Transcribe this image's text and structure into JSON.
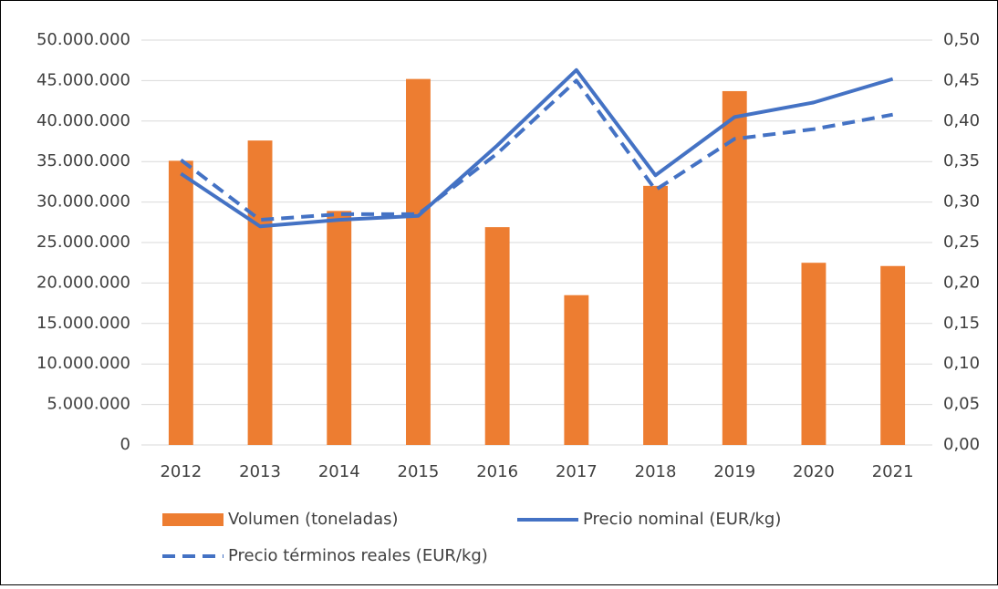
{
  "chart_data": {
    "type": "bar-line",
    "categories": [
      "2012",
      "2013",
      "2014",
      "2015",
      "2016",
      "2017",
      "2018",
      "2019",
      "2020",
      "2021"
    ],
    "series": [
      {
        "name": "Volumen (toneladas)",
        "type": "bar",
        "color": "#ed7d31",
        "values": [
          35100000,
          37600000,
          28900000,
          45200000,
          26900000,
          18500000,
          32000000,
          43700000,
          22500000,
          22100000
        ]
      },
      {
        "name": "Precio nominal (EUR/kg)",
        "type": "line",
        "axis": "y2",
        "color": "#4472c4",
        "values": [
          0.335,
          0.27,
          0.278,
          0.283,
          0.37,
          0.463,
          0.333,
          0.405,
          0.423,
          0.452
        ]
      },
      {
        "name": "Precio términos reales (EUR/kg)",
        "type": "line",
        "dashed": true,
        "axis": "y2",
        "color": "#4472c4",
        "values": [
          0.352,
          0.278,
          0.285,
          0.285,
          0.36,
          0.45,
          0.315,
          0.378,
          0.39,
          0.408
        ]
      }
    ],
    "ylim": [
      0,
      50000000
    ],
    "yticks": [
      0,
      {
        "value": 5000000,
        "label": "5.000.000"
      },
      {
        "value": 10000000,
        "label": "10.000.000"
      },
      {
        "value": 15000000,
        "label": "15.000.000"
      },
      {
        "value": 20000000,
        "label": "20.000.000"
      },
      {
        "value": 25000000,
        "label": "25.000.000"
      },
      {
        "value": 30000000,
        "label": "30.000.000"
      },
      {
        "value": 35000000,
        "label": "35.000.000"
      },
      {
        "value": 40000000,
        "label": "40.000.000"
      },
      {
        "value": 45000000,
        "label": "45.000.000"
      },
      {
        "value": 50000000,
        "label": "50.000.000"
      }
    ],
    "y2lim": [
      0,
      0.5
    ],
    "y2ticks": [
      {
        "value": 0,
        "label": "0,00"
      },
      {
        "value": 0.05,
        "label": "0,05"
      },
      {
        "value": 0.1,
        "label": "0,10"
      },
      {
        "value": 0.15,
        "label": "0,15"
      },
      {
        "value": 0.2,
        "label": "0,20"
      },
      {
        "value": 0.25,
        "label": "0,25"
      },
      {
        "value": 0.3,
        "label": "0,30"
      },
      {
        "value": 0.35,
        "label": "0,35"
      },
      {
        "value": 0.4,
        "label": "0,40"
      },
      {
        "value": 0.45,
        "label": "0,45"
      },
      {
        "value": 0.5,
        "label": "0,50"
      }
    ],
    "grid": true,
    "legend": "bottom"
  }
}
